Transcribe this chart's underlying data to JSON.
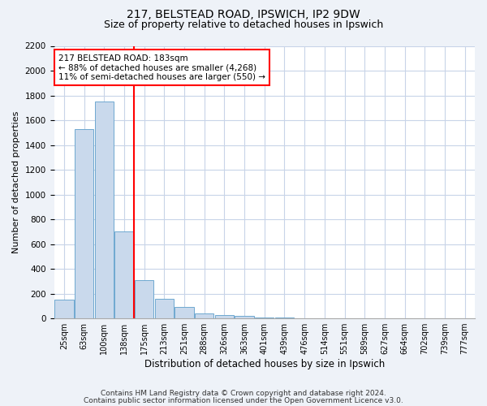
{
  "title1": "217, BELSTEAD ROAD, IPSWICH, IP2 9DW",
  "title2": "Size of property relative to detached houses in Ipswich",
  "xlabel": "Distribution of detached houses by size in Ipswich",
  "ylabel": "Number of detached properties",
  "bins": [
    "25sqm",
    "63sqm",
    "100sqm",
    "138sqm",
    "175sqm",
    "213sqm",
    "251sqm",
    "288sqm",
    "326sqm",
    "363sqm",
    "401sqm",
    "439sqm",
    "476sqm",
    "514sqm",
    "551sqm",
    "589sqm",
    "627sqm",
    "664sqm",
    "702sqm",
    "739sqm",
    "777sqm"
  ],
  "values": [
    150,
    1530,
    1750,
    700,
    310,
    160,
    90,
    40,
    25,
    20,
    10,
    5,
    2,
    1,
    0,
    0,
    0,
    0,
    0,
    0,
    0
  ],
  "bar_color": "#c9d9ec",
  "bar_edge_color": "#6fa8d0",
  "vline_bin_index": 4,
  "annotation_text1": "217 BELSTEAD ROAD: 183sqm",
  "annotation_text2": "← 88% of detached houses are smaller (4,268)",
  "annotation_text3": "11% of semi-detached houses are larger (550) →",
  "annotation_box_color": "white",
  "annotation_edge_color": "red",
  "vline_color": "red",
  "ylim": [
    0,
    2200
  ],
  "yticks": [
    0,
    200,
    400,
    600,
    800,
    1000,
    1200,
    1400,
    1600,
    1800,
    2000,
    2200
  ],
  "footnote1": "Contains HM Land Registry data © Crown copyright and database right 2024.",
  "footnote2": "Contains public sector information licensed under the Open Government Licence v3.0.",
  "background_color": "#eef2f8",
  "plot_background": "#ffffff",
  "grid_color": "#c8d4e8",
  "title1_fontsize": 10,
  "title2_fontsize": 9,
  "xlabel_fontsize": 8.5,
  "ylabel_fontsize": 8,
  "xtick_fontsize": 7,
  "ytick_fontsize": 7.5,
  "footnote_fontsize": 6.5,
  "annot_fontsize": 7.5
}
